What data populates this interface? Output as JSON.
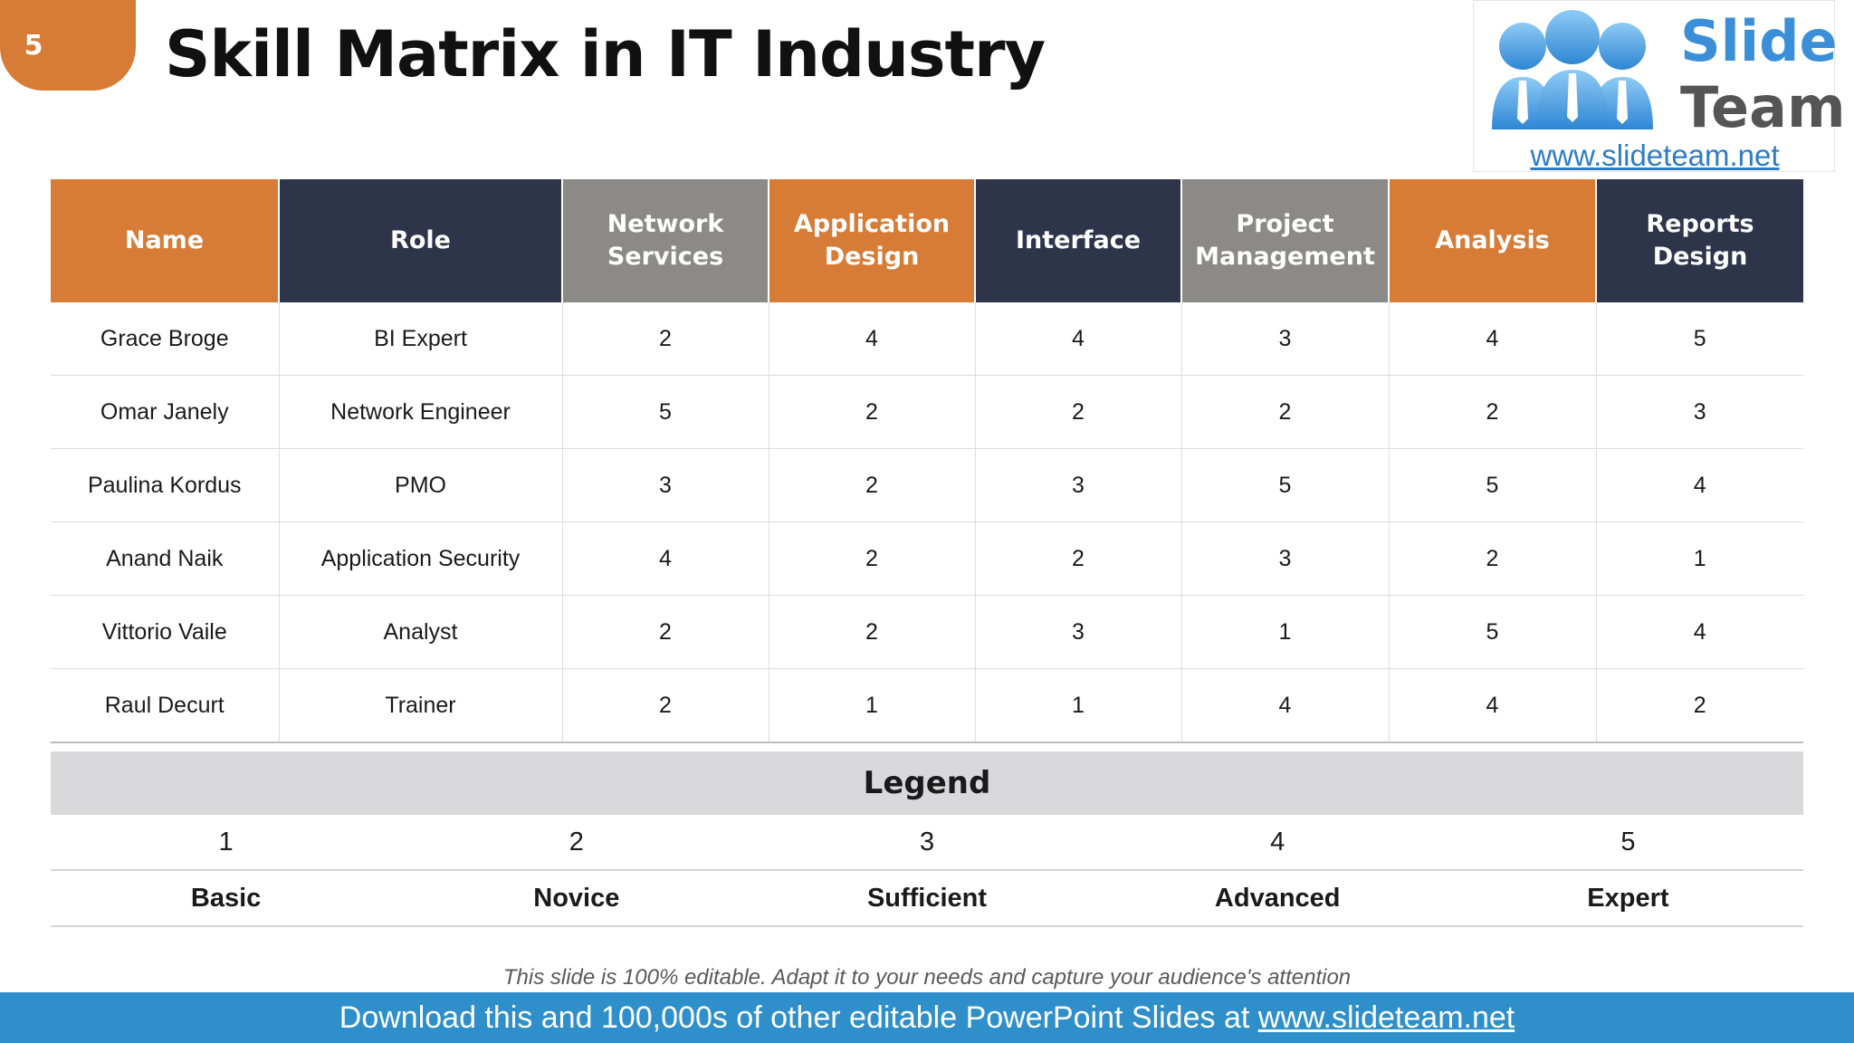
{
  "slide": {
    "number": "5",
    "title": "Skill Matrix in IT Industry"
  },
  "logo": {
    "word1": "Slide",
    "word2": "Team",
    "url": "www.slideteam.net"
  },
  "table": {
    "headers": [
      "Name",
      "Role",
      "Network Services",
      "Application Design",
      "Interface",
      "Project Management",
      "Analysis",
      "Reports Design"
    ],
    "rows": [
      [
        "Grace Broge",
        "BI Expert",
        "2",
        "4",
        "4",
        "3",
        "4",
        "5"
      ],
      [
        "Omar Janely",
        "Network Engineer",
        "5",
        "2",
        "2",
        "2",
        "2",
        "3"
      ],
      [
        "Paulina Kordus",
        "PMO",
        "3",
        "2",
        "3",
        "5",
        "5",
        "4"
      ],
      [
        "Anand Naik",
        "Application Security",
        "4",
        "2",
        "2",
        "3",
        "2",
        "1"
      ],
      [
        "Vittorio Vaile",
        "Analyst",
        "2",
        "2",
        "3",
        "1",
        "5",
        "4"
      ],
      [
        "Raul Decurt",
        "Trainer",
        "2",
        "1",
        "1",
        "4",
        "4",
        "2"
      ]
    ]
  },
  "legend": {
    "title": "Legend",
    "levels": [
      {
        "value": "1",
        "label": "Basic"
      },
      {
        "value": "2",
        "label": "Novice"
      },
      {
        "value": "3",
        "label": "Sufficient"
      },
      {
        "value": "4",
        "label": "Advanced"
      },
      {
        "value": "5",
        "label": "Expert"
      }
    ]
  },
  "footnote": "This slide is 100% editable. Adapt it to your needs and capture your audience's attention",
  "footer": {
    "text": "Download this and 100,000s of other editable PowerPoint Slides at ",
    "link": "www.slideteam.net"
  },
  "colors": {
    "accent_orange": "#d67c36",
    "navy": "#2e3449",
    "gray": "#8c8a88",
    "footer_blue": "#2e8fca",
    "logo_blue": "#3a8fd8"
  }
}
